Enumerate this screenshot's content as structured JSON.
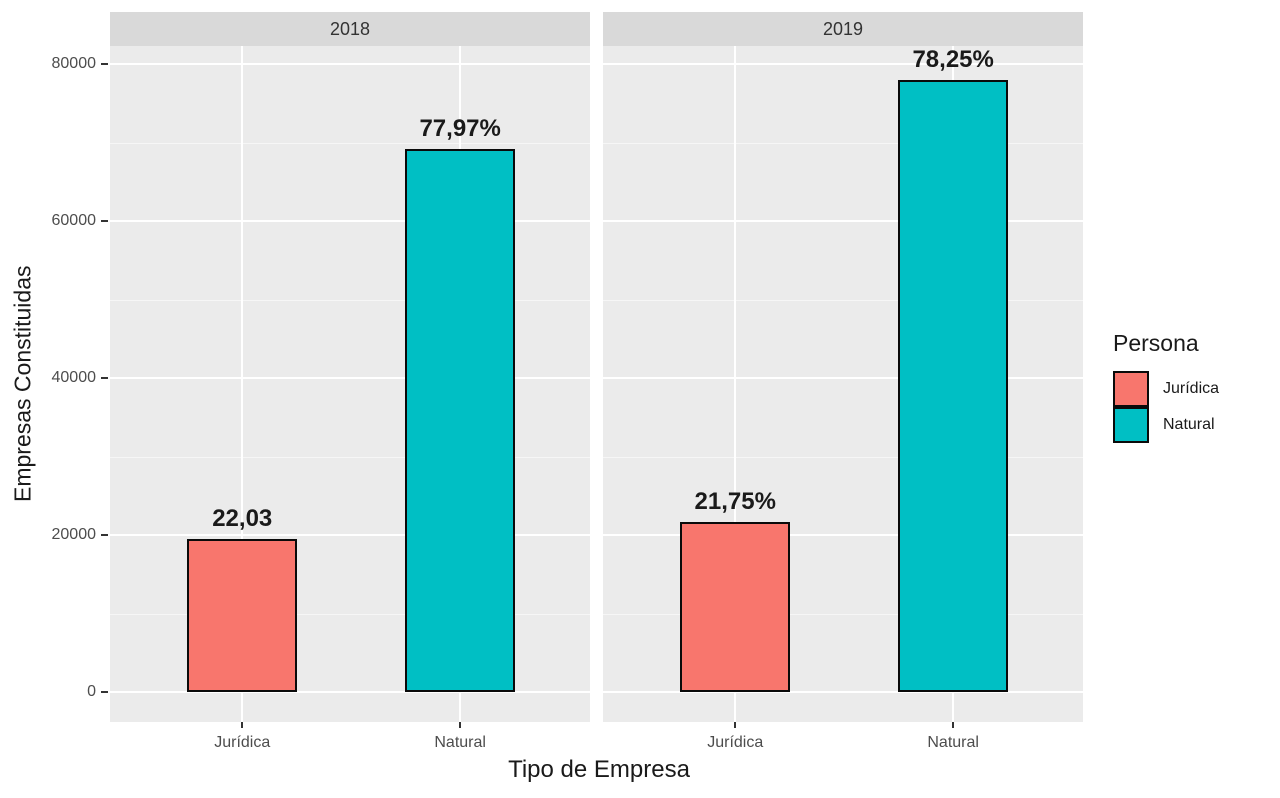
{
  "chart_data": {
    "type": "bar",
    "title": "",
    "xlabel": "Tipo de Empresa",
    "ylabel": "Empresas Constituidas",
    "ylim": [
      0,
      80000
    ],
    "yticks": [
      0,
      20000,
      40000,
      60000,
      80000
    ],
    "ytick_labels": [
      "0",
      "20000",
      "40000",
      "60000",
      "80000"
    ],
    "grid": "white major and minor gridlines on gray panel",
    "legend_position": "right",
    "legend": {
      "title": "Persona",
      "entries": [
        {
          "label": "Jurídica",
          "color": "#F8766D"
        },
        {
          "label": "Natural",
          "color": "#00BFC4"
        }
      ]
    },
    "categories": [
      "Jurídica",
      "Natural"
    ],
    "facets": [
      {
        "label": "2018",
        "bars": [
          {
            "category": "Jurídica",
            "series": "Jurídica",
            "value": 19550,
            "annotation": "22,03",
            "color": "#F8766D"
          },
          {
            "category": "Natural",
            "series": "Natural",
            "value": 69200,
            "annotation": "77,97%",
            "color": "#00BFC4"
          }
        ]
      },
      {
        "label": "2019",
        "bars": [
          {
            "category": "Jurídica",
            "series": "Jurídica",
            "value": 21650,
            "annotation": "21,75%",
            "color": "#F8766D"
          },
          {
            "category": "Natural",
            "series": "Natural",
            "value": 77950,
            "annotation": "78,25%",
            "color": "#00BFC4"
          }
        ]
      }
    ],
    "colors": {
      "panel_background": "#EBEBEB",
      "strip_background": "#D9D9D9",
      "gridline": "#FFFFFF",
      "bar_outline": "#000000",
      "axis_text": "#4D4D4D",
      "title_text": "#1A1A1A"
    }
  }
}
